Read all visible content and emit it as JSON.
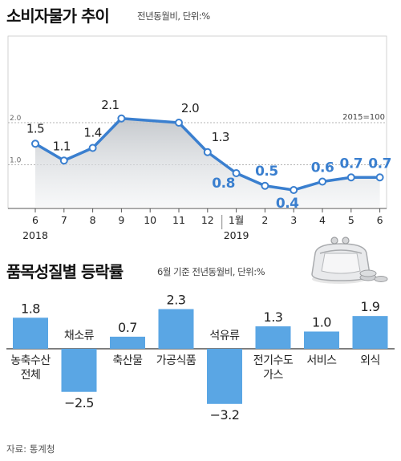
{
  "top": {
    "title": "소비자물가 추이",
    "subtitle": "전년동월비, 단위:%"
  },
  "bottom": {
    "title": "품목성질별 등락률",
    "subtitle": "6월 기준 전년동월비, 단위:%"
  },
  "source": "자료: 통계청",
  "colors": {
    "line": "#3a7fcf",
    "bar": "#5aa6e4",
    "highlight": "#3a7fcf",
    "text": "#222222",
    "area": "#d9dce0"
  },
  "chart_data": [
    {
      "type": "line",
      "title": "소비자물가 추이",
      "subtitle": "전년동월비, 단위:%",
      "base_note": "2015=100",
      "x": [
        "6",
        "7",
        "8",
        "9",
        "10",
        "11",
        "12",
        "1월",
        "2",
        "3",
        "4",
        "5",
        "6"
      ],
      "year_labels": [
        {
          "text": "2018",
          "at": "6"
        },
        {
          "text": "2019",
          "at": "1월"
        }
      ],
      "ytick_labels": [
        "2.0",
        "1.0"
      ],
      "ylim": [
        0,
        2.4
      ],
      "grid": true,
      "series": [
        {
          "values": [
            1.5,
            1.1,
            1.4,
            2.1,
            null,
            2.0,
            1.3,
            0.8,
            0.5,
            0.4,
            0.6,
            0.7,
            0.7
          ]
        }
      ],
      "point_labels": [
        "1.5",
        "1.1",
        "1.4",
        "2.1",
        "",
        "2.0",
        "1.3",
        "0.8",
        "0.5",
        "0.4",
        "0.6",
        "0.7",
        "0.7"
      ],
      "highlight_from_index": 7
    },
    {
      "type": "bar",
      "title": "품목성질별 등락률",
      "subtitle": "6월 기준 전년동월비, 단위:%",
      "categories": [
        [
          "농축수산",
          "전체"
        ],
        [
          "채소류"
        ],
        [
          "축산물"
        ],
        [
          "가공식품"
        ],
        [
          "석유류"
        ],
        [
          "전기수도",
          "가스"
        ],
        [
          "서비스"
        ],
        [
          "외식"
        ]
      ],
      "values": [
        1.8,
        -2.5,
        0.7,
        2.3,
        -3.2,
        1.3,
        1.0,
        1.9
      ],
      "value_labels": [
        "1.8",
        "−2.5",
        "0.7",
        "2.3",
        "−3.2",
        "1.3",
        "1.0",
        "1.9"
      ]
    }
  ]
}
